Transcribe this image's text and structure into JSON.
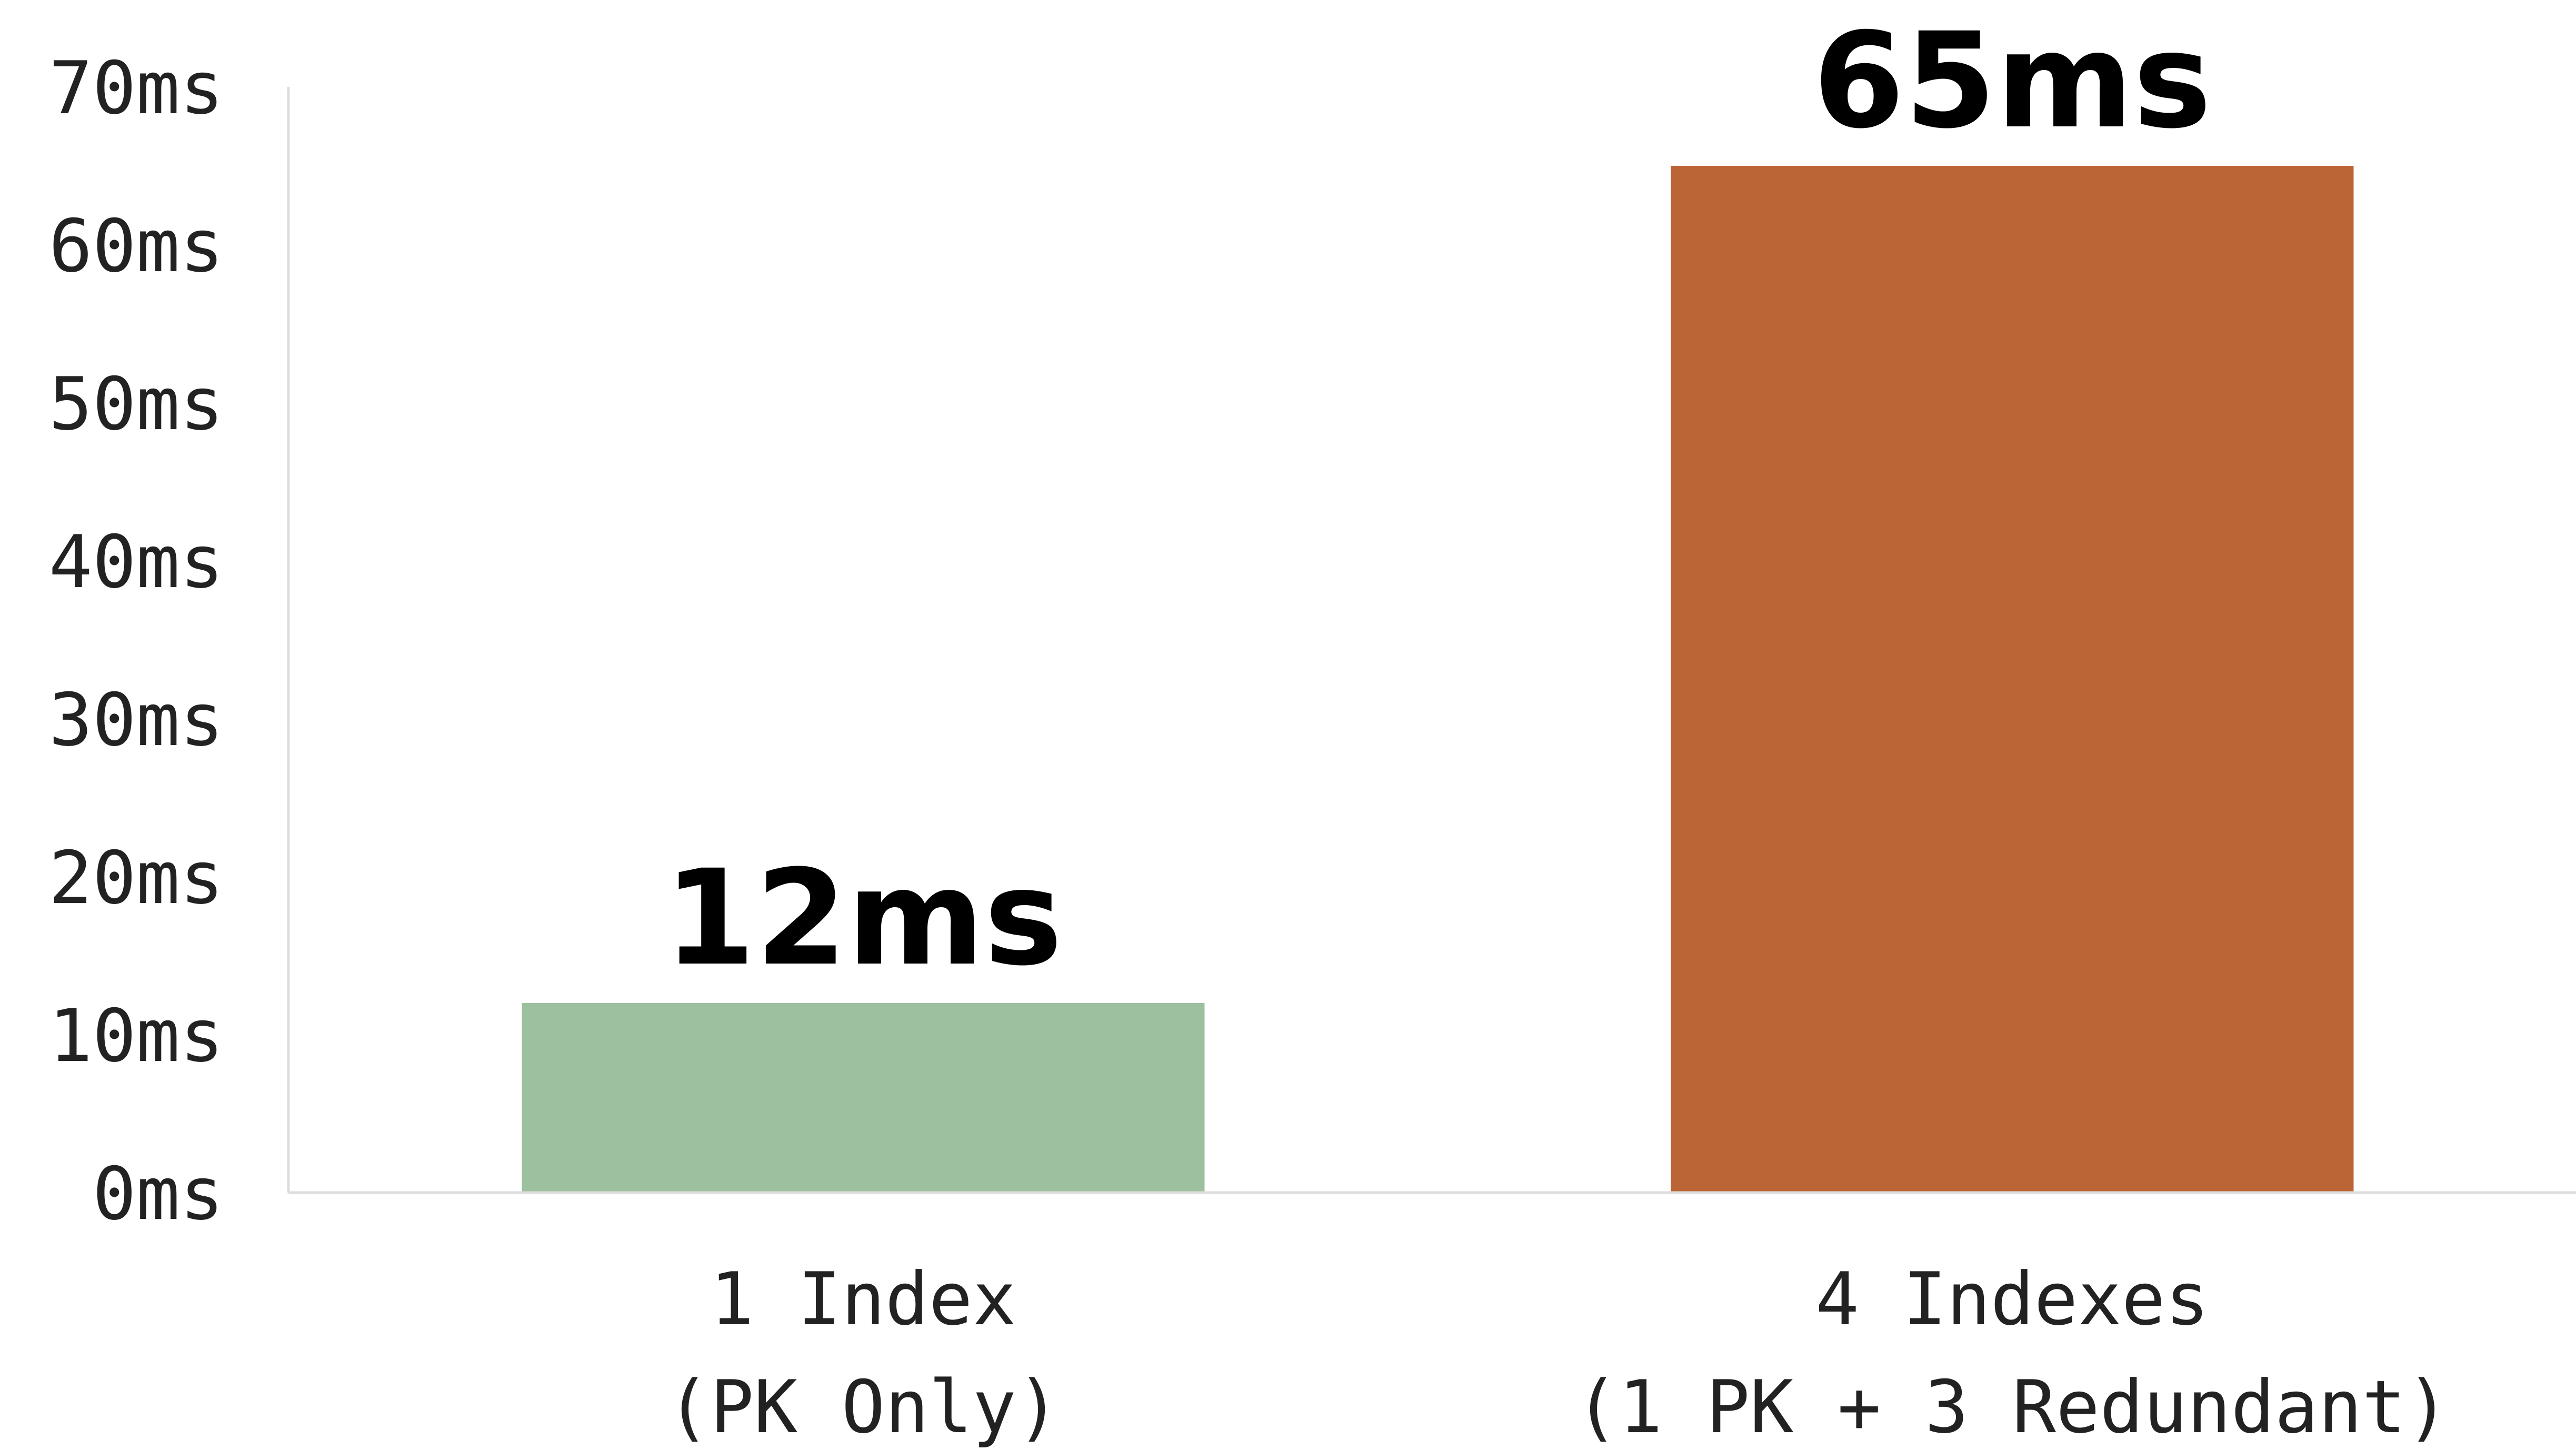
{
  "chart_data": {
    "type": "bar",
    "title": "",
    "xlabel": "",
    "ylabel": "",
    "categories": [
      [
        "1 Index",
        "(PK Only)"
      ],
      [
        "4 Indexes",
        "(1 PK + 3 Redundant)"
      ]
    ],
    "values": [
      12,
      65
    ],
    "data_labels": [
      "12ms",
      "65ms"
    ],
    "bar_colors": [
      "#9dc09e",
      "#bb6536"
    ],
    "ylim": [
      0,
      70
    ],
    "yticks": [
      0,
      10,
      20,
      30,
      40,
      50,
      60,
      70
    ],
    "ytick_labels": [
      "0ms",
      "10ms",
      "20ms",
      "30ms",
      "40ms",
      "50ms",
      "60ms",
      "70ms"
    ],
    "grid": false,
    "legend": "none"
  }
}
